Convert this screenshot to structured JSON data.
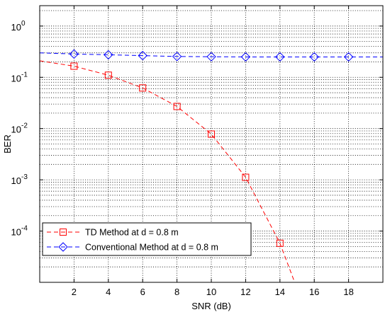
{
  "chart_data": {
    "type": "line",
    "title": "",
    "xlabel": "SNR (dB)",
    "ylabel": "BER",
    "xlim": [
      0,
      20
    ],
    "ylim": [
      1e-05,
      2.5
    ],
    "yscale": "log",
    "grid": true,
    "legend_position": "bottom-left",
    "xticks": [
      2,
      4,
      6,
      8,
      10,
      12,
      14,
      16,
      18
    ],
    "xtick_labels": [
      "2",
      "4",
      "6",
      "8",
      "10",
      "12",
      "14",
      "16",
      "18"
    ],
    "yticks": [
      {
        "value": 1,
        "base": "10",
        "exp": "0"
      },
      {
        "value": 0.1,
        "base": "10",
        "exp": "-1"
      },
      {
        "value": 0.01,
        "base": "10",
        "exp": "-2"
      },
      {
        "value": 0.001,
        "base": "10",
        "exp": "-3"
      },
      {
        "value": 0.0001,
        "base": "10",
        "exp": "-4"
      }
    ],
    "series": [
      {
        "name": "TD Method at d = 0.8 m",
        "color": "#ff0000",
        "marker": "square",
        "line_style": "dashed",
        "x": [
          0,
          2,
          4,
          6,
          8,
          10,
          12,
          14,
          15
        ],
        "y": [
          0.21,
          0.165,
          0.11,
          0.062,
          0.027,
          0.0078,
          0.00112,
          5.78e-05,
          7.5e-06
        ],
        "marker_x": [
          2,
          4,
          6,
          8,
          10,
          12,
          14
        ],
        "marker_y": [
          0.165,
          0.11,
          0.062,
          0.027,
          0.0078,
          0.00112,
          5.78e-05
        ]
      },
      {
        "name": "Conventional Method at d = 0.8 m",
        "color": "#0000ff",
        "marker": "diamond",
        "line_style": "dashed",
        "x": [
          0,
          2,
          4,
          6,
          8,
          10,
          12,
          14,
          16,
          18,
          20
        ],
        "y": [
          0.3,
          0.285,
          0.275,
          0.265,
          0.255,
          0.252,
          0.25,
          0.25,
          0.25,
          0.25,
          0.25
        ],
        "marker_x": [
          2,
          4,
          6,
          8,
          10,
          12,
          14,
          16,
          18
        ],
        "marker_y": [
          0.285,
          0.275,
          0.265,
          0.255,
          0.252,
          0.25,
          0.25,
          0.25,
          0.25
        ]
      }
    ]
  }
}
